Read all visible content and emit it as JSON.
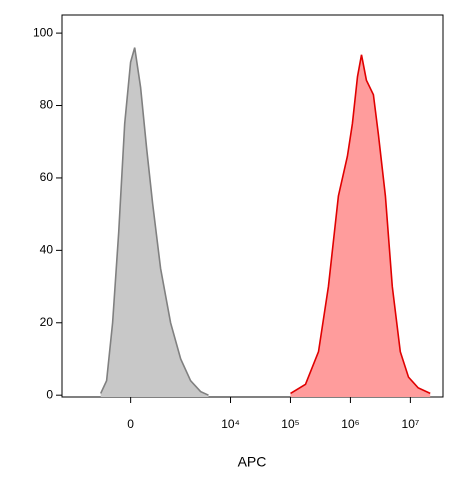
{
  "chart_data": {
    "type": "histogram_overlay",
    "xlabel": "APC",
    "xscale": "biexponential",
    "xlim": [
      -3000,
      35000000
    ],
    "xticks": [
      0,
      {
        "value": 10000,
        "label": "10⁴"
      },
      {
        "value": 100000,
        "label": "10⁵"
      },
      {
        "value": 1000000,
        "label": "10⁶"
      },
      {
        "value": 10000000,
        "label": "10⁷"
      }
    ],
    "ylim": [
      -0.5,
      105
    ],
    "yticks": [
      0,
      20,
      40,
      60,
      80,
      100
    ],
    "series": [
      {
        "color": "#c8c8c8",
        "edgecolor": "#808080",
        "x": [
          -615,
          -458,
          -323,
          -206,
          -100,
          0,
          67,
          170,
          283,
          410,
          614,
          955,
          1443,
          2134,
          3154,
          4280
        ],
        "values": [
          0.5,
          4,
          20,
          45,
          75,
          92,
          96,
          85,
          68,
          53,
          35,
          20,
          10,
          4,
          1,
          0
        ]
      },
      {
        "color": "#ff9c9c",
        "edgecolor": "#e00000",
        "x": [
          100000,
          178000,
          293000,
          430000,
          630000,
          890000,
          1080000,
          1310000,
          1530000,
          1850000,
          2420000,
          2930000,
          3830000,
          5000000,
          6800000,
          9300000,
          13500000,
          21400000
        ],
        "values": [
          0.5,
          3,
          12,
          30,
          55,
          66,
          75,
          88,
          94,
          87,
          83,
          72,
          55,
          30,
          12,
          5,
          2,
          0.5
        ]
      }
    ]
  }
}
